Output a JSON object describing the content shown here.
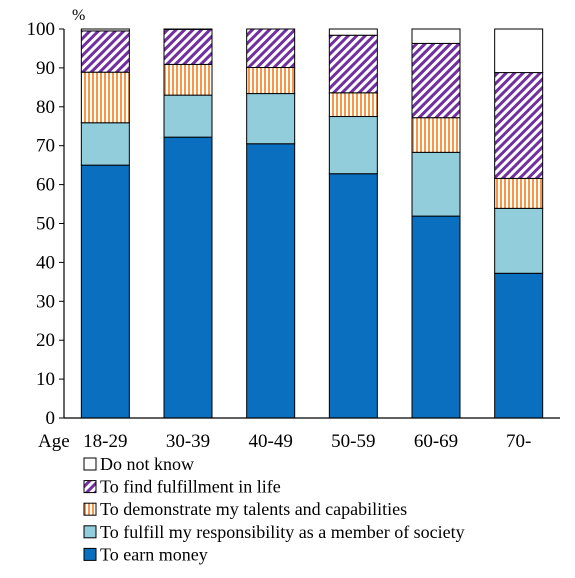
{
  "chart_data": {
    "type": "bar",
    "stacked": true,
    "y_unit_label": "%",
    "x_axis_prefix": "Age",
    "categories": [
      "18-29",
      "30-39",
      "40-49",
      "50-59",
      "60-69",
      "70-"
    ],
    "ylim": [
      0,
      100
    ],
    "yticks": [
      0,
      10,
      20,
      30,
      40,
      50,
      60,
      70,
      80,
      90,
      100
    ],
    "grid": false,
    "legend_position": "bottom",
    "series": [
      {
        "name": "To earn money",
        "values": [
          65.0,
          72.2,
          70.5,
          62.8,
          51.9,
          37.2
        ],
        "color": "#0a6fbf",
        "pattern": "solid"
      },
      {
        "name": "To fulfill my responsibility as a member of society",
        "values": [
          10.9,
          10.8,
          12.9,
          14.7,
          16.4,
          16.7
        ],
        "color": "#92cddc",
        "pattern": "solid"
      },
      {
        "name": "To demonstrate my talents and capabilities",
        "values": [
          13.0,
          7.9,
          6.7,
          6.1,
          8.9,
          7.7
        ],
        "color": "#f79646",
        "pattern": "vertical-stripes"
      },
      {
        "name": "To find fulfillment in life",
        "values": [
          10.6,
          9.0,
          9.9,
          14.8,
          19.1,
          27.2
        ],
        "color": "#7030a0",
        "pattern": "diagonal-hatch"
      },
      {
        "name": "Do not know",
        "values": [
          0.5,
          0.1,
          0.0,
          1.6,
          3.7,
          11.2
        ],
        "color": "#ffffff",
        "pattern": "solid"
      }
    ]
  }
}
